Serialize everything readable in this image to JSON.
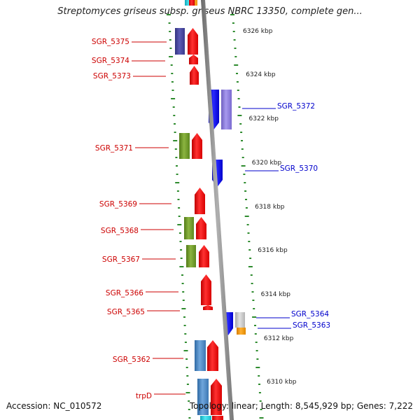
{
  "title": "Streptomyces griseus subsp. griseus NBRC 13350, complete gen...",
  "footer": {
    "accession": "Accession: NC_010572",
    "topology": "Topology: linear; Length: 8,545,929 bp; Genes: 7,222"
  },
  "colors": {
    "backbone": "#8c8c8c",
    "tick": "#2e8b2e",
    "forward_label": "#cc0000",
    "reverse_label": "#0000cc",
    "gene_red": "#ee0000",
    "gene_blue": "#1010ee",
    "gene_purple": "#8f7fdd",
    "gene_navy": "#4a4aa0",
    "gene_olive": "#6f9a2a",
    "gene_steel": "#4d8ac4",
    "gene_gray": "#c8c8c8",
    "gene_orange": "#f09a10",
    "gene_cyan": "#22d0e0"
  },
  "scale": {
    "unit": "kbp",
    "ticks": [
      "6326 kbp",
      "6324 kbp",
      "6322 kbp",
      "6320 kbp",
      "6318 kbp",
      "6316 kbp",
      "6314 kbp",
      "6312 kbp",
      "6310 kbp"
    ]
  },
  "gene_labels": [
    {
      "id": "SGR_5375",
      "strand": "forward"
    },
    {
      "id": "SGR_5374",
      "strand": "forward"
    },
    {
      "id": "SGR_5373",
      "strand": "forward"
    },
    {
      "id": "SGR_5372",
      "strand": "reverse"
    },
    {
      "id": "SGR_5371",
      "strand": "forward"
    },
    {
      "id": "SGR_5370",
      "strand": "reverse"
    },
    {
      "id": "SGR_5369",
      "strand": "forward"
    },
    {
      "id": "SGR_5368",
      "strand": "forward"
    },
    {
      "id": "SGR_5367",
      "strand": "forward"
    },
    {
      "id": "SGR_5366",
      "strand": "forward"
    },
    {
      "id": "SGR_5365",
      "strand": "forward"
    },
    {
      "id": "SGR_5364",
      "strand": "reverse"
    },
    {
      "id": "SGR_5363",
      "strand": "reverse"
    },
    {
      "id": "SGR_5362",
      "strand": "forward"
    },
    {
      "id": "trpD",
      "strand": "forward"
    }
  ]
}
